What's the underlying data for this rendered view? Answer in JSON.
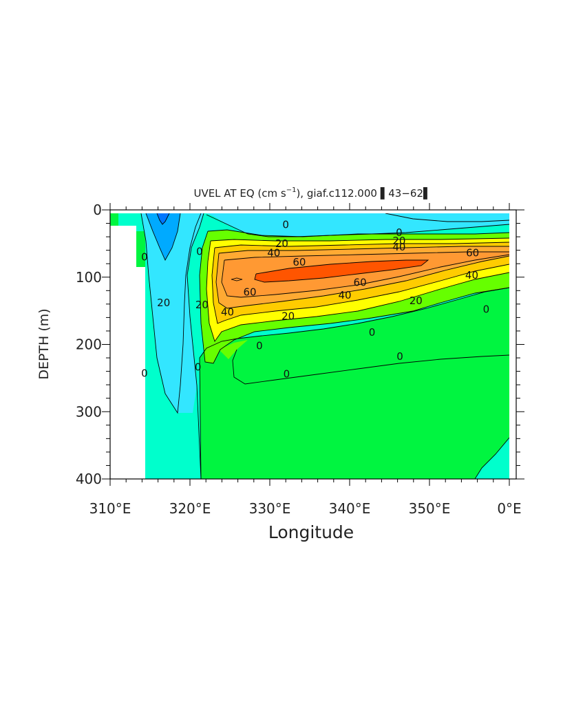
{
  "chart_data": {
    "type": "contour",
    "title_main": "UVEL AT EQ (cm s",
    "title_sup": "−1",
    "title_rest": "), giaf.c112.000 ▌43−62▌",
    "xlabel": "Longitude",
    "ylabel": "DEPTH (m)",
    "xlim": [
      310,
      360
    ],
    "ylim": [
      0,
      400
    ],
    "y_inverted": true,
    "xticks": [
      "310°E",
      "320°E",
      "330°E",
      "340°E",
      "350°E",
      "0°E"
    ],
    "yticks": [
      "0",
      "100",
      "200",
      "300",
      "400"
    ],
    "contour_levels": [
      -80,
      -60,
      -40,
      -20,
      0,
      20,
      40,
      60,
      80
    ],
    "contour_labels": [
      {
        "text": "0",
        "x": 332,
        "y": 22
      },
      {
        "text": "20",
        "x": 331.5,
        "y": 50
      },
      {
        "text": "40",
        "x": 330.5,
        "y": 64
      },
      {
        "text": "60",
        "x": 333.7,
        "y": 78
      },
      {
        "text": "60",
        "x": 327.5,
        "y": 122
      },
      {
        "text": "60",
        "x": 341.3,
        "y": 108
      },
      {
        "text": "40",
        "x": 339.4,
        "y": 127
      },
      {
        "text": "40",
        "x": 324.7,
        "y": 152
      },
      {
        "text": "40",
        "x": 355.3,
        "y": 97
      },
      {
        "text": "20",
        "x": 332.3,
        "y": 158
      },
      {
        "text": "20",
        "x": 348.3,
        "y": 135
      },
      {
        "text": "0",
        "x": 346.2,
        "y": 34
      },
      {
        "text": "20",
        "x": 346.2,
        "y": 46
      },
      {
        "text": "40",
        "x": 346.2,
        "y": 55
      },
      {
        "text": "60",
        "x": 355.4,
        "y": 64
      },
      {
        "text": "0",
        "x": 314.3,
        "y": 70
      },
      {
        "text": "0",
        "x": 321.2,
        "y": 62
      },
      {
        "text": "20",
        "x": 316.7,
        "y": 138
      },
      {
        "text": "20",
        "x": 321.5,
        "y": 141
      },
      {
        "text": "0",
        "x": 357.1,
        "y": 148
      },
      {
        "text": "0",
        "x": 342.8,
        "y": 182
      },
      {
        "text": "0",
        "x": 328.7,
        "y": 202
      },
      {
        "text": "0",
        "x": 346.3,
        "y": 218
      },
      {
        "text": "0",
        "x": 332.1,
        "y": 244
      },
      {
        "text": "0",
        "x": 321.0,
        "y": 234
      },
      {
        "text": "0",
        "x": 314.3,
        "y": 243
      }
    ],
    "colors": {
      "le_-20": "#0077ff",
      "-20_to_-10": "#00aaff",
      "-10_to_0": "#33e6ff",
      "0_to_10_a": "#00ffcc",
      "0_to_10_b": "#00f540",
      "10_to_20": "#66ff00",
      "20_to_30": "#ffff00",
      "30_to_40": "#ffcc00",
      "40_to_50": "#ffaa33",
      "50_to_60": "#ff9933",
      "ge_60": "#ff5500"
    },
    "grid": false,
    "legend": "none"
  }
}
